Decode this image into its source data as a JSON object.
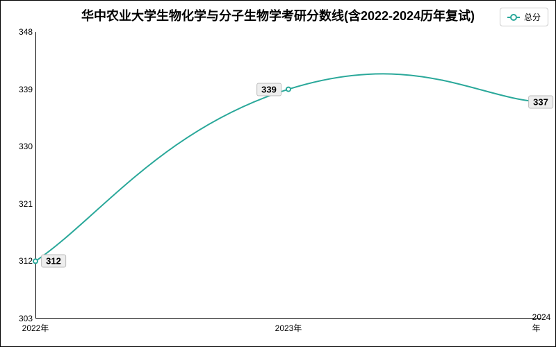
{
  "chart": {
    "type": "line",
    "title": "华中农业大学生物化学与分子生物学考研分数线(含2022-2024历年复试)",
    "title_fontsize": 18,
    "legend": {
      "label": "总分",
      "color": "#2aa89a"
    },
    "line_color": "#2aa89a",
    "line_width": 2,
    "marker_style": "circle",
    "marker_size": 6,
    "background_color": "#ffffff",
    "point_label_bg": "#eeeeee",
    "x": {
      "labels": [
        "2022年",
        "2023年",
        "2024年"
      ]
    },
    "y": {
      "min": 303,
      "max": 348,
      "ticks": [
        303,
        312,
        321,
        330,
        339,
        348
      ]
    },
    "data": [
      {
        "year": "2022年",
        "value": 312,
        "label_offset_x": 26,
        "label_offset_y": 0
      },
      {
        "year": "2023年",
        "value": 339,
        "label_offset_x": -28,
        "label_offset_y": 0
      },
      {
        "year": "2024年",
        "value": 337,
        "label_offset_x": -1,
        "label_offset_y": 0
      }
    ]
  }
}
